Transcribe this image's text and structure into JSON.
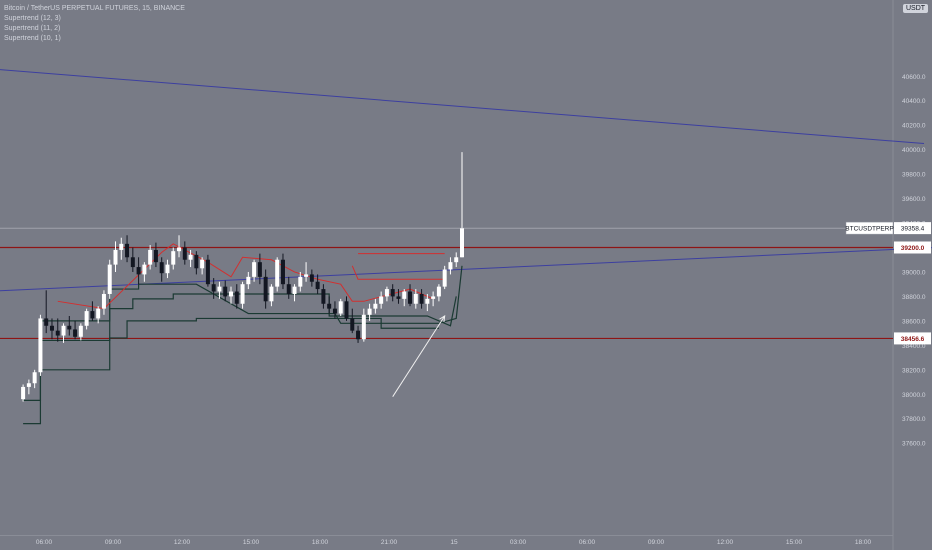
{
  "legend": {
    "symbol_line": "Bitcoin / TetherUS PERPETUAL FUTURES, 15, BINANCE",
    "indicators": [
      "Supertrend (12, 3)",
      "Supertrend (11, 2)",
      "Supertrend (10, 1)"
    ]
  },
  "currency": "USDT",
  "colors": {
    "background": "#787b86",
    "candle_up": "#ffffff",
    "candle_down": "#131722",
    "supertrend_up": "#1b3a33",
    "supertrend_down": "#d32f2f",
    "trend_line": "#3c3fa0",
    "horizontal_level": "#8e1515",
    "annotation_arrow": "#f0f0f0",
    "axis_text": "#d1d4dc"
  },
  "chart_data": {
    "type": "candlestick",
    "y_axis": {
      "ylim": [
        37500,
        40700
      ],
      "ticks": [
        "37600.0",
        "37800.0",
        "38000.0",
        "38200.0",
        "38400.0",
        "38600.0",
        "38800.0",
        "39000.0",
        "39200.0",
        "39400.0",
        "39600.0",
        "39800.0",
        "40000.0",
        "40200.0",
        "40400.0",
        "40600.0"
      ]
    },
    "x_axis": {
      "ticks": [
        "06:00",
        "09:00",
        "12:00",
        "15:00",
        "18:00",
        "21:00",
        "15",
        "03:00",
        "06:00",
        "09:00",
        "12:00",
        "15:00",
        "18:00"
      ]
    },
    "price_labels": [
      {
        "label": "39200.0",
        "value": 39200
      },
      {
        "label": "38456.6",
        "value": 38456.6
      }
    ],
    "last_price": {
      "symbol": "BTCUSDTPERP",
      "value": "39358.4",
      "price": 39358.4
    },
    "horizontal_levels": [
      39200,
      38456.6
    ],
    "trend_lines": [
      {
        "from": [
          "00:30",
          40700
        ],
        "to": [
          "19:30 (day 15)",
          40050
        ]
      },
      {
        "from": [
          "00:30",
          38820
        ],
        "to": [
          "20:00 (day 15)",
          39200
        ]
      }
    ],
    "candles": [
      [
        "04:30",
        37960,
        38080,
        37940,
        38060
      ],
      [
        "04:45",
        38060,
        38120,
        38000,
        38090
      ],
      [
        "05:00",
        38090,
        38200,
        38050,
        38180
      ],
      [
        "05:15",
        38180,
        38650,
        38150,
        38620
      ],
      [
        "05:30",
        38620,
        38850,
        38500,
        38560
      ],
      [
        "05:45",
        38560,
        38620,
        38450,
        38520
      ],
      [
        "06:00",
        38520,
        38620,
        38430,
        38480
      ],
      [
        "06:15",
        38480,
        38580,
        38420,
        38560
      ],
      [
        "06:30",
        38560,
        38640,
        38480,
        38530
      ],
      [
        "06:45",
        38530,
        38600,
        38450,
        38470
      ],
      [
        "07:00",
        38470,
        38580,
        38440,
        38560
      ],
      [
        "07:15",
        38560,
        38700,
        38530,
        38680
      ],
      [
        "07:30",
        38680,
        38760,
        38600,
        38620
      ],
      [
        "07:45",
        38620,
        38720,
        38580,
        38700
      ],
      [
        "08:00",
        38700,
        38850,
        38650,
        38820
      ],
      [
        "08:15",
        38820,
        39100,
        38780,
        39060
      ],
      [
        "08:30",
        39060,
        39250,
        39000,
        39180
      ],
      [
        "08:45",
        39180,
        39280,
        39100,
        39230
      ],
      [
        "09:00",
        39230,
        39300,
        39080,
        39120
      ],
      [
        "09:15",
        39120,
        39200,
        39000,
        39040
      ],
      [
        "09:30",
        39040,
        39120,
        38900,
        38980
      ],
      [
        "09:45",
        38980,
        39080,
        38920,
        39060
      ],
      [
        "10:00",
        39060,
        39220,
        39020,
        39180
      ],
      [
        "10:15",
        39180,
        39240,
        39040,
        39080
      ],
      [
        "10:30",
        39080,
        39120,
        38920,
        38990
      ],
      [
        "10:45",
        38990,
        39100,
        38950,
        39060
      ],
      [
        "11:00",
        39060,
        39200,
        39020,
        39170
      ],
      [
        "11:15",
        39170,
        39300,
        39120,
        39200
      ],
      [
        "11:30",
        39200,
        39250,
        39060,
        39100
      ],
      [
        "11:45",
        39100,
        39180,
        39040,
        39140
      ],
      [
        "12:00",
        39140,
        39170,
        38980,
        39030
      ],
      [
        "12:15",
        39030,
        39120,
        38980,
        39100
      ],
      [
        "12:30",
        39100,
        39140,
        38880,
        38900
      ],
      [
        "12:45",
        38900,
        38950,
        38780,
        38840
      ],
      [
        "13:00",
        38840,
        38920,
        38780,
        38880
      ],
      [
        "13:15",
        38880,
        38930,
        38760,
        38800
      ],
      [
        "13:30",
        38800,
        38880,
        38740,
        38840
      ],
      [
        "13:45",
        38840,
        38900,
        38700,
        38740
      ],
      [
        "14:00",
        38740,
        38920,
        38700,
        38900
      ],
      [
        "14:15",
        38900,
        39000,
        38860,
        38960
      ],
      [
        "14:30",
        38960,
        39100,
        38920,
        39080
      ],
      [
        "14:45",
        39080,
        39150,
        38900,
        38960
      ],
      [
        "15:00",
        38960,
        39020,
        38700,
        38760
      ],
      [
        "15:15",
        38760,
        38900,
        38720,
        38880
      ],
      [
        "15:30",
        38880,
        39120,
        38840,
        39100
      ],
      [
        "15:45",
        39100,
        39150,
        38860,
        38900
      ],
      [
        "16:00",
        38900,
        38960,
        38780,
        38820
      ],
      [
        "16:15",
        38820,
        38900,
        38760,
        38880
      ],
      [
        "16:30",
        38880,
        39000,
        38840,
        38960
      ],
      [
        "16:45",
        38960,
        39080,
        38920,
        38980
      ],
      [
        "17:00",
        38980,
        39020,
        38880,
        38920
      ],
      [
        "17:15",
        38920,
        38980,
        38820,
        38860
      ],
      [
        "17:30",
        38860,
        38900,
        38700,
        38740
      ],
      [
        "17:45",
        38740,
        38800,
        38660,
        38700
      ],
      [
        "18:00",
        38700,
        38760,
        38620,
        38660
      ],
      [
        "18:15",
        38660,
        38780,
        38640,
        38760
      ],
      [
        "18:30",
        38760,
        38800,
        38600,
        38620
      ],
      [
        "18:45",
        38620,
        38700,
        38500,
        38520
      ],
      [
        "19:00",
        38520,
        38560,
        38420,
        38450
      ],
      [
        "19:15",
        38450,
        38700,
        38430,
        38650
      ],
      [
        "19:30",
        38650,
        38740,
        38600,
        38700
      ],
      [
        "19:45",
        38700,
        38780,
        38660,
        38740
      ],
      [
        "20:00",
        38740,
        38840,
        38700,
        38800
      ],
      [
        "20:15",
        38800,
        38880,
        38760,
        38860
      ],
      [
        "20:30",
        38860,
        38900,
        38760,
        38800
      ],
      [
        "20:45",
        38800,
        38860,
        38740,
        38780
      ],
      [
        "21:00",
        38780,
        38860,
        38720,
        38840
      ],
      [
        "21:15",
        38840,
        38900,
        38720,
        38740
      ],
      [
        "21:30",
        38740,
        38860,
        38700,
        38820
      ],
      [
        "21:45",
        38820,
        38860,
        38700,
        38740
      ],
      [
        "22:00",
        38740,
        38820,
        38680,
        38780
      ],
      [
        "22:15",
        38780,
        38840,
        38720,
        38800
      ],
      [
        "22:30",
        38800,
        38900,
        38760,
        38880
      ],
      [
        "22:45",
        38880,
        39050,
        38860,
        39020
      ],
      [
        "23:00",
        39020,
        39120,
        38980,
        39080
      ],
      [
        "23:15",
        39080,
        39160,
        39040,
        39120
      ],
      [
        "23:30",
        39120,
        39980,
        39120,
        39358.4
      ]
    ],
    "supertrends": [
      {
        "name": "Supertrend (12, 3)",
        "up_points": [
          [
            "04:30",
            37760
          ],
          [
            "05:15",
            37760
          ],
          [
            "05:15",
            38200
          ],
          [
            "08:15",
            38200
          ],
          [
            "08:15",
            38460
          ],
          [
            "09:00",
            38460
          ],
          [
            "09:00",
            38600
          ],
          [
            "12:00",
            38600
          ],
          [
            "12:00",
            38620
          ],
          [
            "20:00",
            38620
          ],
          [
            "20:00",
            38540
          ],
          [
            "22:30",
            38540
          ]
        ],
        "down_points": [
          [
            "19:00",
            39150
          ],
          [
            "22:45",
            39150
          ]
        ]
      },
      {
        "name": "Supertrend (11, 2)",
        "up_points": [
          [
            "04:30",
            37950
          ],
          [
            "05:15",
            37950
          ],
          [
            "05:15",
            38440
          ],
          [
            "08:15",
            38440
          ],
          [
            "08:15",
            38700
          ],
          [
            "09:15",
            38700
          ],
          [
            "09:15",
            38780
          ],
          [
            "11:00",
            38780
          ],
          [
            "11:00",
            38820
          ],
          [
            "17:45",
            38820
          ],
          [
            "17:45",
            38640
          ],
          [
            "22:00",
            38640
          ],
          [
            "23:00",
            38560
          ],
          [
            "23:15",
            38800
          ]
        ],
        "down_points": [
          [
            "18:45",
            39050
          ],
          [
            "19:00",
            38940
          ],
          [
            "22:45",
            38940
          ]
        ]
      },
      {
        "name": "Supertrend (10, 1)",
        "up_points": [
          [
            "05:15",
            38600
          ],
          [
            "08:15",
            38600
          ],
          [
            "08:15",
            38860
          ],
          [
            "09:30",
            38860
          ],
          [
            "09:30",
            38900
          ],
          [
            "12:00",
            38900
          ],
          [
            "14:15",
            38660
          ],
          [
            "18:00",
            38660
          ],
          [
            "18:15",
            38580
          ],
          [
            "22:30",
            38580
          ],
          [
            "23:15",
            38620
          ],
          [
            "23:30",
            39050
          ]
        ],
        "down_points": [
          [
            "06:00",
            38760
          ],
          [
            "08:00",
            38700
          ],
          [
            "10:30",
            39160
          ],
          [
            "11:00",
            39230
          ],
          [
            "12:30",
            39080
          ],
          [
            "13:30",
            38960
          ],
          [
            "14:00",
            39120
          ],
          [
            "15:15",
            39100
          ],
          [
            "16:15",
            39000
          ],
          [
            "17:15",
            38940
          ],
          [
            "18:15",
            38900
          ],
          [
            "18:45",
            38760
          ],
          [
            "19:15",
            38760
          ],
          [
            "21:15",
            38860
          ],
          [
            "22:15",
            38780
          ]
        ]
      }
    ],
    "annotations": [
      {
        "type": "arrow",
        "from": [
          "20:30",
          37980
        ],
        "to": [
          "22:45",
          38640
        ]
      }
    ]
  }
}
